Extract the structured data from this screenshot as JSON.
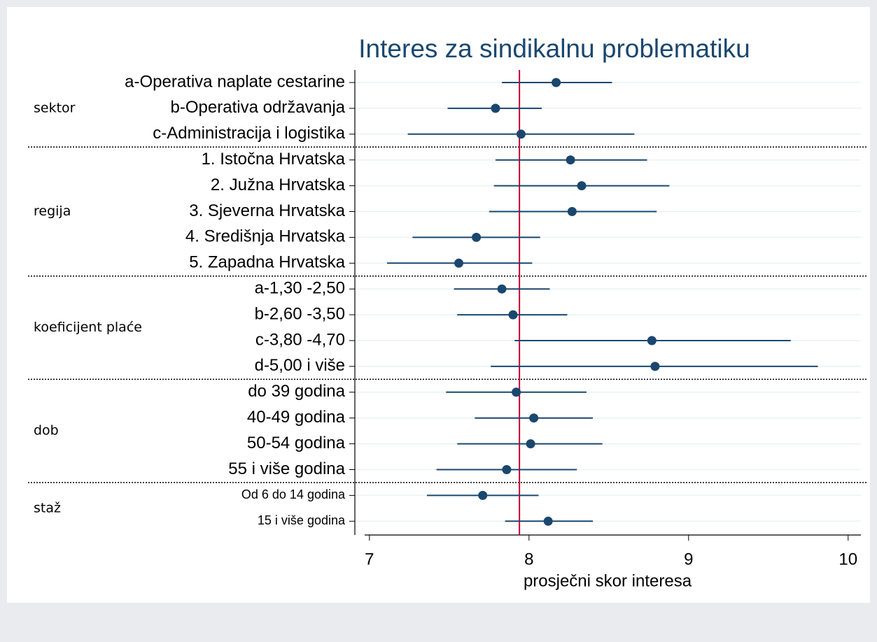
{
  "chart_data": {
    "type": "dot",
    "title": "Interes za sindikalnu problematiku",
    "x_label": "prosječni skor interesa",
    "xlim": [
      6.97,
      10.08
    ],
    "xticks": [
      7,
      8,
      9,
      10
    ],
    "reference": 7.94,
    "color": "#1a476f",
    "reference_color": "#c10534",
    "grid": true,
    "groups": [
      {
        "name": "sektor",
        "categories": [
          "a-Operativa naplate cestarine",
          "b-Operativa održavanja",
          "c-Administracija i logistika"
        ],
        "values": [
          8.17,
          7.79,
          7.95
        ],
        "lower": [
          7.83,
          7.49,
          7.24
        ],
        "upper": [
          8.52,
          8.08,
          8.66
        ]
      },
      {
        "name": "regija",
        "categories": [
          "1. Istočna Hrvatska",
          "2. Južna Hrvatska",
          "3. Sjeverna Hrvatska",
          "4. Središnja Hrvatska",
          "5. Zapadna Hrvatska"
        ],
        "values": [
          8.26,
          8.33,
          8.27,
          7.67,
          7.56
        ],
        "lower": [
          7.79,
          7.78,
          7.75,
          7.27,
          7.11
        ],
        "upper": [
          8.74,
          8.88,
          8.8,
          8.07,
          8.02
        ]
      },
      {
        "name": "koeficijent plaće",
        "categories": [
          "a-1,30 -2,50",
          "b-2,60 -3,50",
          "c-3,80 -4,70",
          "d-5,00 i više"
        ],
        "values": [
          7.83,
          7.9,
          8.77,
          8.79
        ],
        "lower": [
          7.53,
          7.55,
          7.91,
          7.76
        ],
        "upper": [
          8.13,
          8.24,
          9.64,
          9.81
        ]
      },
      {
        "name": "dob",
        "categories": [
          "do 39 godina",
          "40-49 godina",
          "50-54 godina",
          "55 i više godina"
        ],
        "values": [
          7.92,
          8.03,
          8.01,
          7.86
        ],
        "lower": [
          7.48,
          7.66,
          7.55,
          7.42
        ],
        "upper": [
          8.36,
          8.4,
          8.46,
          8.3
        ]
      },
      {
        "name": "staž",
        "categories": [
          "Od 6 do 14 godina",
          "15 i više godina"
        ],
        "values": [
          7.71,
          8.12
        ],
        "lower": [
          7.36,
          7.85
        ],
        "upper": [
          8.06,
          8.4
        ]
      }
    ]
  }
}
